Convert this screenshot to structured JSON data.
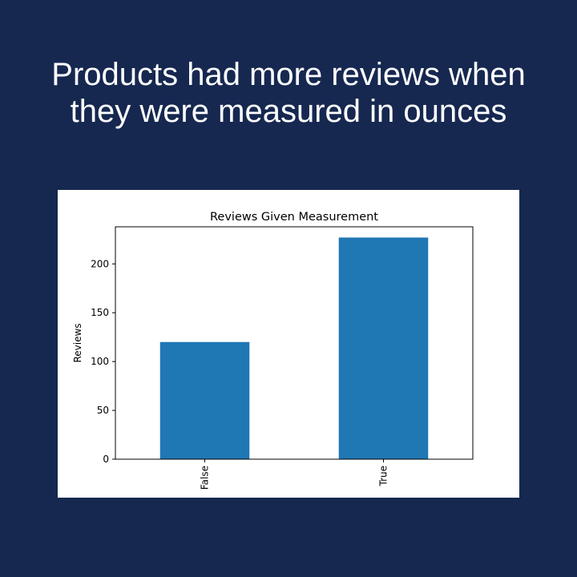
{
  "slide": {
    "title_line1": "Products had more reviews when",
    "title_line2": "they were measured in ounces",
    "background_color": "#162850",
    "title_color": "#ffffff"
  },
  "chart_data": {
    "type": "bar",
    "title": "Reviews Given Measurement",
    "xlabel": "",
    "ylabel": "Reviews",
    "categories": [
      "False",
      "True"
    ],
    "values": [
      120,
      227
    ],
    "ylim": [
      0,
      238
    ],
    "yticks": [
      0,
      50,
      100,
      150,
      200
    ],
    "x_tick_rotation": "vertical",
    "bar_color": "#1f77b4",
    "grid": false,
    "legend": "none"
  }
}
